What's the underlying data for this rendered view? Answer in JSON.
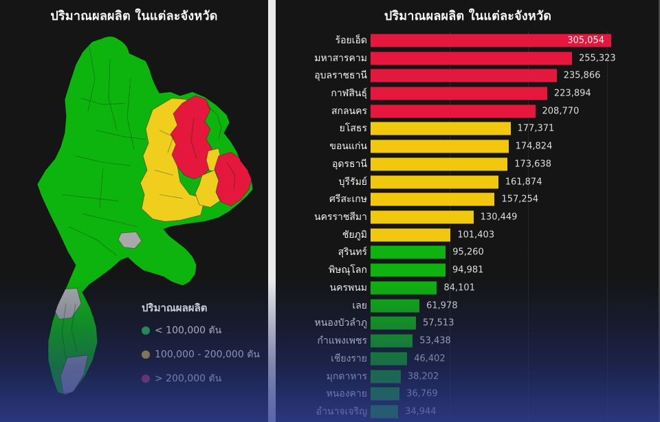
{
  "left_panel": {
    "title": "ปริมาณผลผลิต ในแต่ละจังหวัด",
    "legend": {
      "title": "ปริมาณผลผลิต",
      "items": [
        {
          "label": "< 100,000 ตัน",
          "color": "#2db453"
        },
        {
          "label": "100,000 - 200,000 ตัน",
          "color": "#d9b63e"
        },
        {
          "label": "> 200,000 ตัน",
          "color": "#c93366"
        }
      ]
    },
    "map": {
      "name": "thailand-province-choropleth",
      "fill_colors": {
        "low": "#0db40d",
        "mid": "#f0ce1e",
        "high": "#e6173c",
        "no_data": "#a9a9a9"
      }
    }
  },
  "right_panel": {
    "title": "ปริมาณผลผลิต ในแต่ละจังหวัด"
  },
  "chart_data": {
    "type": "bar",
    "orientation": "horizontal",
    "title": "ปริมาณผลผลิต ในแต่ละจังหวัด",
    "categories": [
      "ร้อยเอ็ด",
      "มหาสารคาม",
      "อุบลราชธานี",
      "กาฬสินธุ์",
      "สกลนคร",
      "ยโสธร",
      "ขอนแก่น",
      "อุดรธานี",
      "บุรีรัมย์",
      "ศรีสะเกษ",
      "นครราชสีมา",
      "ชัยภูมิ",
      "สุรินทร์",
      "พิษณุโลก",
      "นครพนม",
      "เลย",
      "หนองบัวลำภู",
      "กำแพงเพชร",
      "เชียงราย",
      "มุกดาหาร",
      "หนองคาย",
      "อำนาจเจริญ"
    ],
    "values": [
      305054,
      255323,
      235866,
      223894,
      208770,
      177371,
      174824,
      173638,
      161874,
      157254,
      130449,
      101403,
      95260,
      94981,
      84101,
      61978,
      57513,
      53438,
      46402,
      38202,
      36769,
      34944
    ],
    "xlim": [
      0,
      320000
    ],
    "gridlines": [
      100000,
      200000,
      300000
    ],
    "grid": "dotted",
    "legend_position": "none",
    "thresholds": {
      "yellow_min": 100000,
      "red_min": 200000
    },
    "bar_colors": {
      "green": "#0fb30f",
      "yellow": "#f2c80f",
      "red": "#e6173c"
    }
  }
}
